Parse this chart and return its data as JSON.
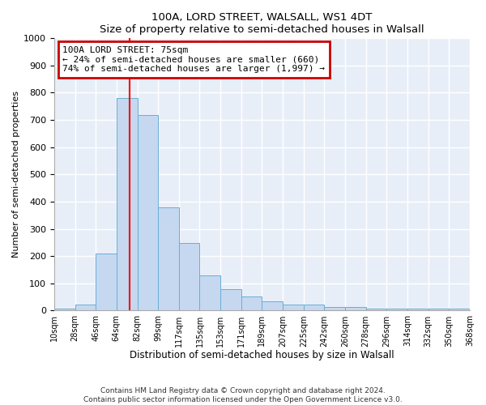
{
  "title": "100A, LORD STREET, WALSALL, WS1 4DT",
  "subtitle": "Size of property relative to semi-detached houses in Walsall",
  "xlabel": "Distribution of semi-detached houses by size in Walsall",
  "ylabel": "Number of semi-detached properties",
  "bar_color": "#c5d8f0",
  "bar_edge_color": "#6aaed6",
  "background_color": "#e8eef8",
  "grid_color": "#ffffff",
  "annotation_text": "100A LORD STREET: 75sqm\n← 24% of semi-detached houses are smaller (660)\n74% of semi-detached houses are larger (1,997) →",
  "annotation_box_color": "#ffffff",
  "annotation_box_edge": "#cc0000",
  "bin_labels": [
    "10sqm",
    "28sqm",
    "46sqm",
    "64sqm",
    "82sqm",
    "99sqm",
    "117sqm",
    "135sqm",
    "153sqm",
    "171sqm",
    "189sqm",
    "207sqm",
    "225sqm",
    "242sqm",
    "260sqm",
    "278sqm",
    "296sqm",
    "314sqm",
    "332sqm",
    "350sqm",
    "368sqm"
  ],
  "values": [
    8,
    22,
    210,
    780,
    717,
    380,
    248,
    128,
    78,
    53,
    35,
    22,
    22,
    12,
    12,
    8,
    8,
    8,
    8,
    8
  ],
  "ylim": [
    0,
    1000
  ],
  "yticks": [
    0,
    100,
    200,
    300,
    400,
    500,
    600,
    700,
    800,
    900,
    1000
  ],
  "footer": "Contains HM Land Registry data © Crown copyright and database right 2024.\nContains public sector information licensed under the Open Government Licence v3.0."
}
